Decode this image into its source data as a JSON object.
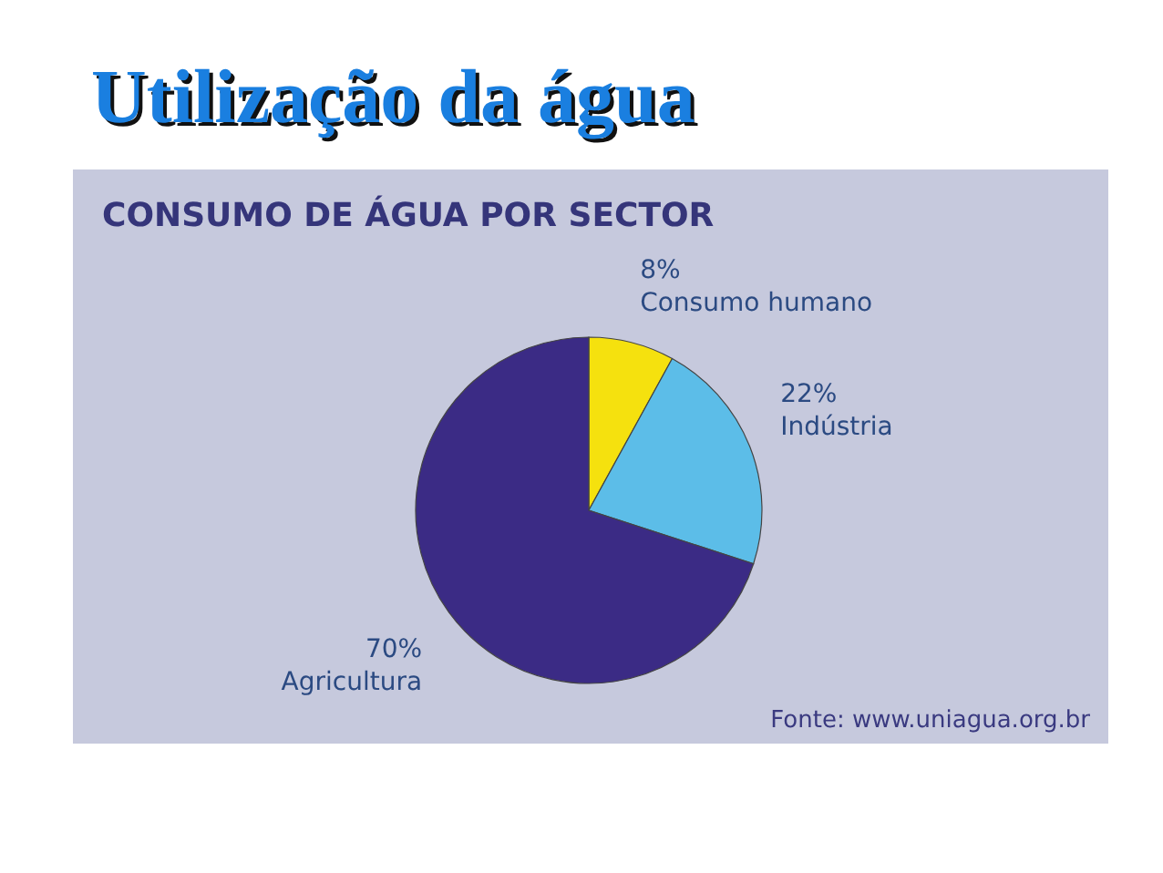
{
  "chart_data": {
    "type": "pie",
    "title": "Utilização da água",
    "subtitle": "CONSUMO DE ÁGUA POR SECTOR",
    "categories": [
      "Consumo humano",
      "Indústria",
      "Agricultura"
    ],
    "values": [
      8,
      22,
      70
    ],
    "colors": [
      "#f5e10e",
      "#5cbde8",
      "#3b2b85"
    ],
    "value_labels": [
      "8%",
      "22%",
      "70%"
    ],
    "annotations": [
      "Fonte: www.uniagua.org.br"
    ]
  }
}
